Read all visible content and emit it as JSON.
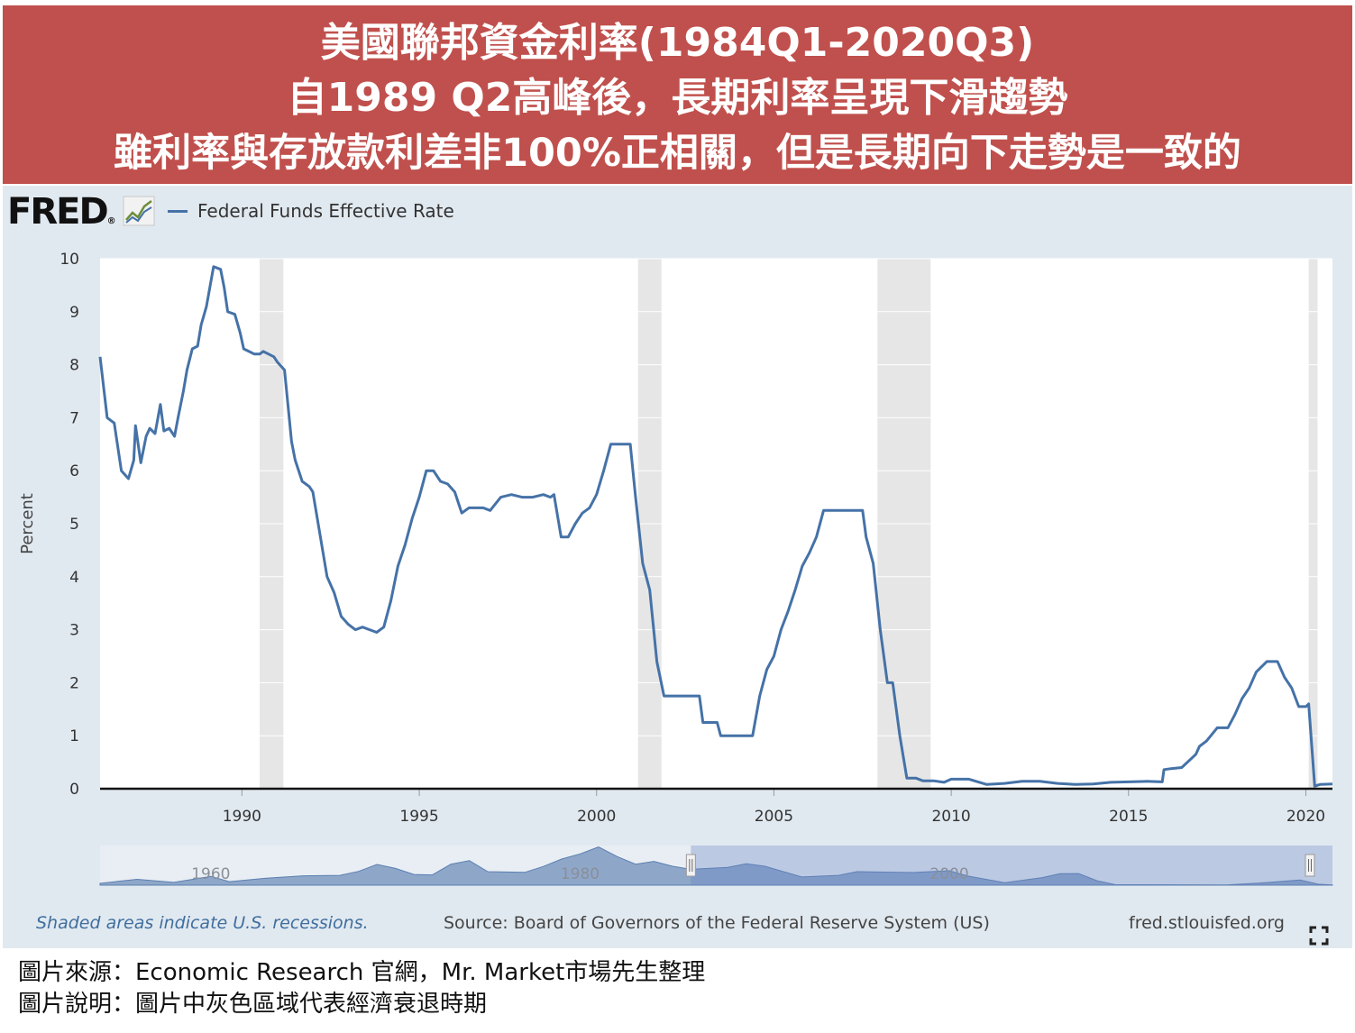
{
  "header": {
    "line1": "美國聯邦資金利率(1984Q1-2020Q3)",
    "line2": "自1989 Q2高峰後，長期利率呈現下滑趨勢",
    "line3": "雖利率與存放款利差非100%正相關，但是長期向下走勢是一致的"
  },
  "fred": {
    "logo_text": "FRED",
    "logo_mark": "®",
    "logo_icon": "line-chart-icon"
  },
  "footer": {
    "recession_note": "Shaded areas indicate U.S. recessions.",
    "source": "Source: Board of Governors of the Federal Reserve System (US)",
    "site": "fred.stlouisfed.org"
  },
  "caption": {
    "line1": "圖片來源：Economic Research 官網，Mr. Market市場先生整理",
    "line2": "圖片說明：圖片中灰色區域代表經濟衰退時期"
  },
  "colors": {
    "banner": "#c0504d",
    "series": "#4572a7",
    "panel": "#e1e9f0",
    "recession": "#e6e6e6",
    "navigator_fill": "#8ea7c9"
  },
  "chart_data": {
    "type": "line",
    "ylabel": "Percent",
    "ylim": [
      0,
      10
    ],
    "xlim": [
      1986.0,
      2020.75
    ],
    "yticks": [
      "0",
      "1",
      "2",
      "3",
      "4",
      "5",
      "6",
      "7",
      "8",
      "9",
      "10"
    ],
    "xticks": [
      "1990",
      "1995",
      "2000",
      "2005",
      "2010",
      "2015",
      "2020"
    ],
    "grid": "horizontal",
    "legend_position": "top-left",
    "recessions": [
      [
        1990.5,
        1991.17
      ],
      [
        2001.17,
        2001.83
      ],
      [
        2007.92,
        2009.42
      ],
      [
        2020.08,
        2020.33
      ]
    ],
    "navigator_ticks": [
      "1960",
      "1980",
      "2000"
    ],
    "series": [
      {
        "name": "Federal Funds Effective Rate",
        "x": [
          1986.0,
          1986.2,
          1986.4,
          1986.6,
          1986.8,
          1986.95,
          1987.0,
          1987.15,
          1987.3,
          1987.4,
          1987.55,
          1987.7,
          1987.8,
          1987.95,
          1988.1,
          1988.2,
          1988.35,
          1988.45,
          1988.6,
          1988.75,
          1988.85,
          1989.0,
          1989.2,
          1989.4,
          1989.5,
          1989.6,
          1989.8,
          1989.95,
          1990.05,
          1990.2,
          1990.35,
          1990.5,
          1990.6,
          1990.75,
          1990.9,
          1991.0,
          1991.2,
          1991.4,
          1991.5,
          1991.7,
          1991.9,
          1992.0,
          1992.2,
          1992.4,
          1992.6,
          1992.8,
          1993.0,
          1993.2,
          1993.4,
          1993.6,
          1993.8,
          1994.0,
          1994.2,
          1994.4,
          1994.6,
          1994.8,
          1995.0,
          1995.2,
          1995.4,
          1995.6,
          1995.8,
          1996.0,
          1996.2,
          1996.4,
          1996.6,
          1996.8,
          1997.0,
          1997.3,
          1997.6,
          1997.9,
          1998.2,
          1998.5,
          1998.7,
          1998.8,
          1999.0,
          1999.2,
          1999.4,
          1999.6,
          1999.8,
          2000.0,
          2000.2,
          2000.4,
          2000.6,
          2000.8,
          2000.95,
          2001.1,
          2001.3,
          2001.5,
          2001.7,
          2001.9,
          2002.0,
          2002.5,
          2002.9,
          2003.0,
          2003.4,
          2003.5,
          2003.6,
          2004.0,
          2004.4,
          2004.6,
          2004.8,
          2005.0,
          2005.2,
          2005.4,
          2005.6,
          2005.8,
          2006.0,
          2006.2,
          2006.4,
          2006.55,
          2006.8,
          2007.0,
          2007.3,
          2007.5,
          2007.6,
          2007.8,
          2008.0,
          2008.2,
          2008.35,
          2008.55,
          2008.75,
          2008.9,
          2009.0,
          2009.2,
          2009.5,
          2009.8,
          2010.0,
          2010.5,
          2011.0,
          2011.5,
          2012.0,
          2012.5,
          2013.0,
          2013.5,
          2014.0,
          2014.5,
          2015.0,
          2015.5,
          2015.95,
          2016.0,
          2016.2,
          2016.5,
          2016.9,
          2017.0,
          2017.2,
          2017.5,
          2017.8,
          2018.0,
          2018.2,
          2018.4,
          2018.6,
          2018.9,
          2019.0,
          2019.2,
          2019.4,
          2019.6,
          2019.8,
          2020.0,
          2020.08,
          2020.25,
          2020.4,
          2020.75
        ],
        "y": [
          8.15,
          7.0,
          6.9,
          6.0,
          5.85,
          6.2,
          6.85,
          6.15,
          6.65,
          6.8,
          6.7,
          7.25,
          6.75,
          6.8,
          6.65,
          7.0,
          7.5,
          7.9,
          8.3,
          8.35,
          8.75,
          9.1,
          9.85,
          9.8,
          9.45,
          9.0,
          8.95,
          8.6,
          8.3,
          8.25,
          8.2,
          8.2,
          8.25,
          8.2,
          8.15,
          8.05,
          7.9,
          6.55,
          6.2,
          5.8,
          5.7,
          5.6,
          4.8,
          4.0,
          3.7,
          3.25,
          3.1,
          3.0,
          3.05,
          3.0,
          2.95,
          3.05,
          3.55,
          4.2,
          4.6,
          5.1,
          5.5,
          6.0,
          6.0,
          5.8,
          5.75,
          5.6,
          5.2,
          5.3,
          5.3,
          5.3,
          5.25,
          5.5,
          5.55,
          5.5,
          5.5,
          5.55,
          5.5,
          5.55,
          4.75,
          4.75,
          5.0,
          5.2,
          5.3,
          5.55,
          6.0,
          6.5,
          6.5,
          6.5,
          6.5,
          5.5,
          4.25,
          3.75,
          2.4,
          1.75,
          1.75,
          1.75,
          1.75,
          1.25,
          1.25,
          1.0,
          1.0,
          1.0,
          1.0,
          1.75,
          2.25,
          2.5,
          3.0,
          3.35,
          3.75,
          4.2,
          4.45,
          4.75,
          5.25,
          5.25,
          5.25,
          5.25,
          5.25,
          5.25,
          4.75,
          4.25,
          3.0,
          2.0,
          2.0,
          1.0,
          0.2,
          0.2,
          0.2,
          0.15,
          0.15,
          0.12,
          0.18,
          0.18,
          0.08,
          0.1,
          0.14,
          0.14,
          0.1,
          0.08,
          0.09,
          0.12,
          0.13,
          0.14,
          0.13,
          0.36,
          0.38,
          0.4,
          0.65,
          0.8,
          0.9,
          1.15,
          1.15,
          1.4,
          1.7,
          1.9,
          2.2,
          2.4,
          2.4,
          2.4,
          2.1,
          1.9,
          1.55,
          1.55,
          1.6,
          0.05,
          0.08,
          0.09
        ]
      }
    ]
  }
}
